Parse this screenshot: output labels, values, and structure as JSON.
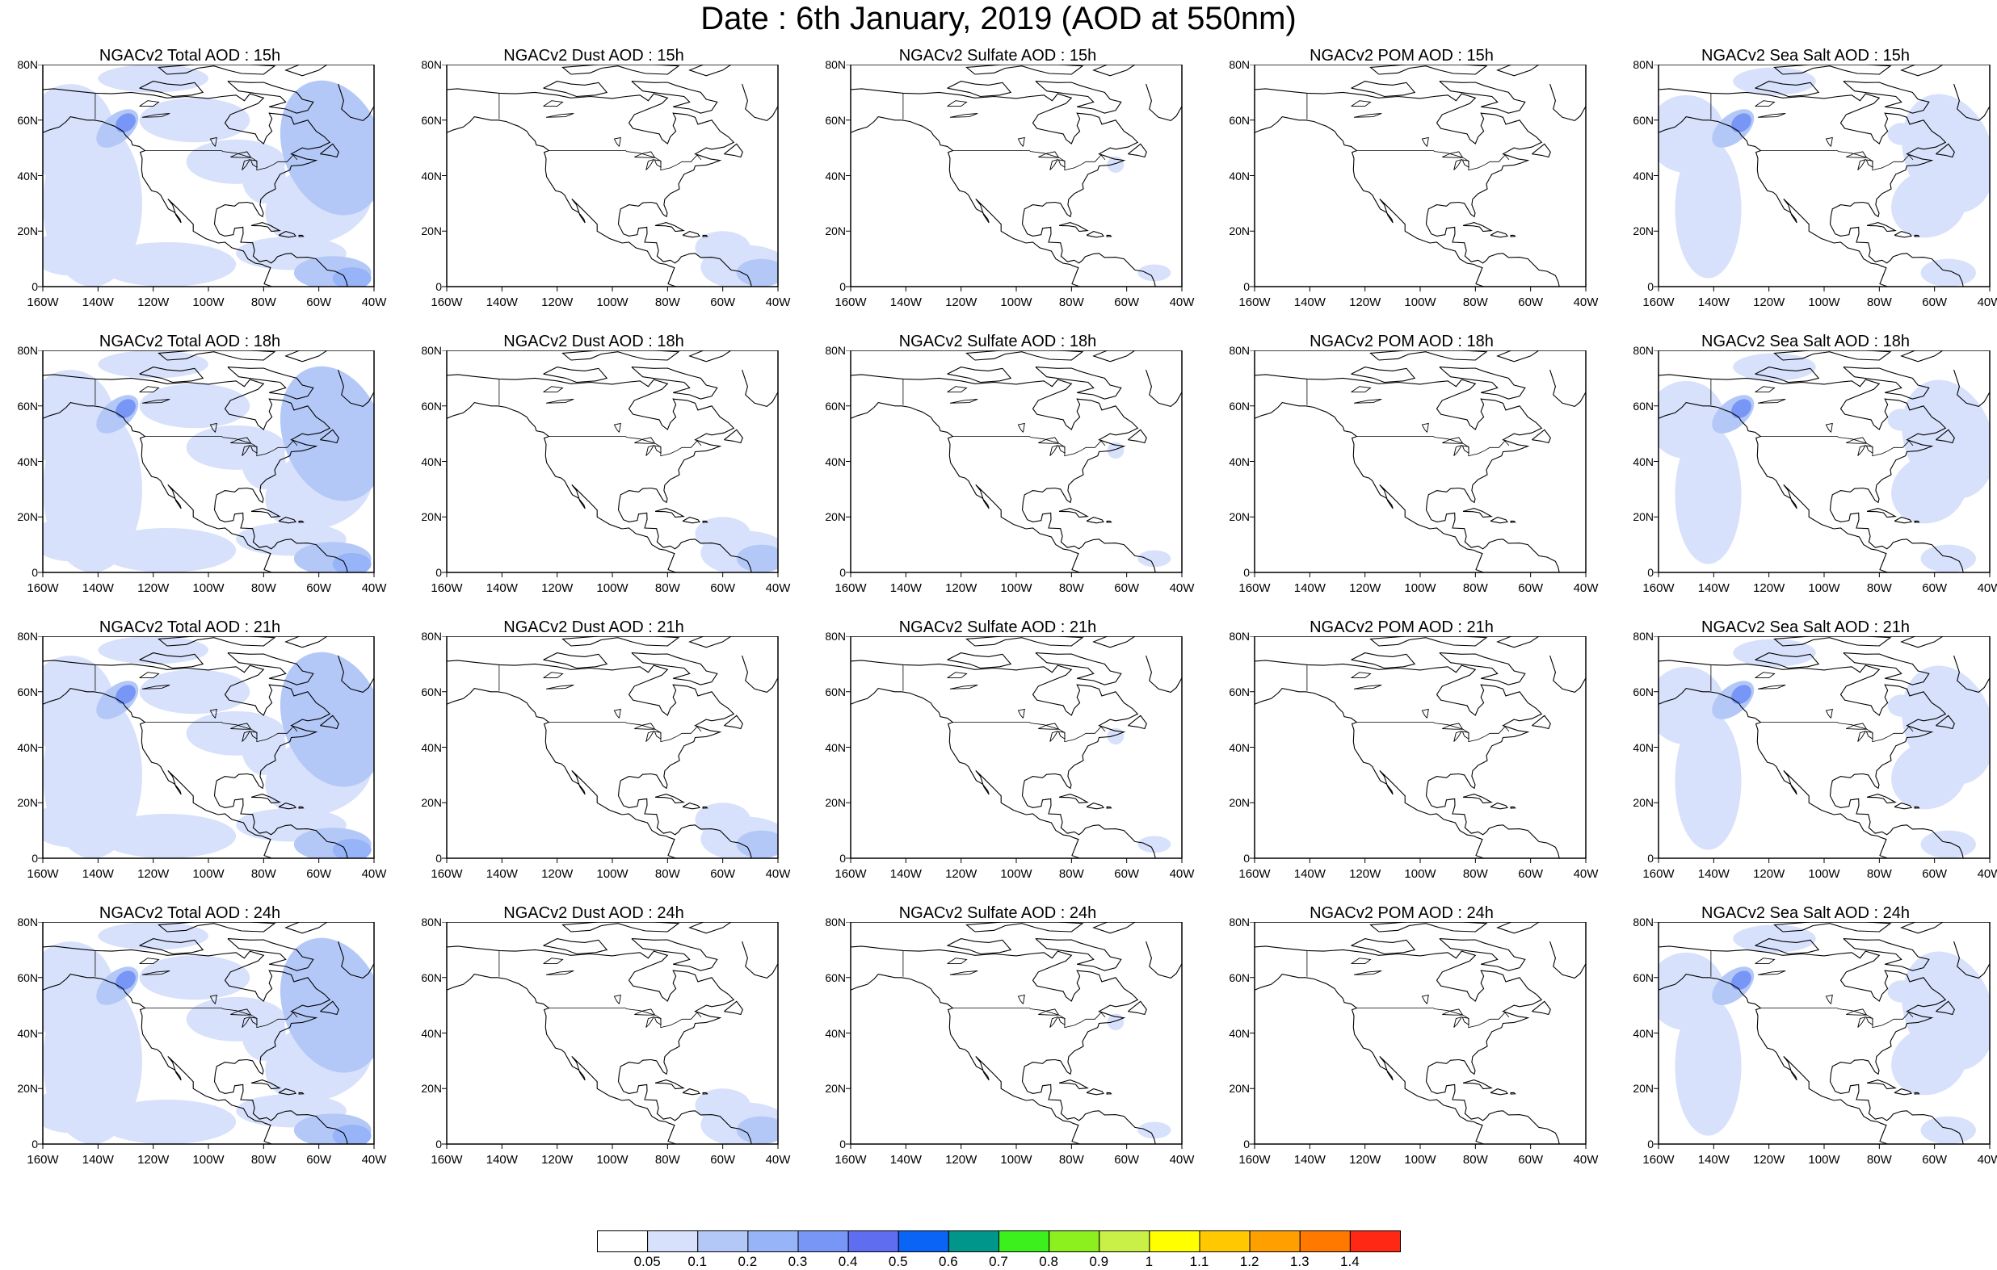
{
  "title": "Date : 6th January, 2019 (AOD at 550nm)",
  "lat_ticks": [
    "80N",
    "60N",
    "40N",
    "20N",
    "0"
  ],
  "lon_ticks": [
    "160W",
    "140W",
    "120W",
    "100W",
    "80W",
    "60W",
    "40W"
  ],
  "panel_titles": [
    [
      "NGACv2 Total AOD : 15h",
      "NGACv2 Dust AOD : 15h",
      "NGACv2 Sulfate AOD : 15h",
      "NGACv2 POM AOD : 15h",
      "NGACv2 Sea Salt AOD : 15h"
    ],
    [
      "NGACv2 Total AOD : 18h",
      "NGACv2 Dust AOD : 18h",
      "NGACv2 Sulfate AOD : 18h",
      "NGACv2 POM AOD : 18h",
      "NGACv2 Sea Salt AOD : 18h"
    ],
    [
      "NGACv2 Total AOD : 21h",
      "NGACv2 Dust AOD : 21h",
      "NGACv2 Sulfate AOD : 21h",
      "NGACv2 POM AOD : 21h",
      "NGACv2 Sea Salt AOD : 21h"
    ],
    [
      "NGACv2 Total AOD : 24h",
      "NGACv2 Dust AOD : 24h",
      "NGACv2 Sulfate AOD : 24h",
      "NGACv2 POM AOD : 24h",
      "NGACv2 Sea Salt  AOD : 24h"
    ]
  ],
  "colorbar": {
    "labels": [
      "0.05",
      "0.1",
      "0.2",
      "0.3",
      "0.4",
      "0.5",
      "0.6",
      "0.7",
      "0.8",
      "0.9",
      "1",
      "1.1",
      "1.2",
      "1.3",
      "1.4"
    ],
    "colors": [
      "#ffffff",
      "#d7e1fb",
      "#b4c8f8",
      "#96b4f7",
      "#7896f5",
      "#5f6ef0",
      "#0a64f5",
      "#00968c",
      "#3cf01e",
      "#8cf01e",
      "#c8f046",
      "#ffff00",
      "#ffc800",
      "#ffa000",
      "#ff7800",
      "#ff2814"
    ]
  }
}
